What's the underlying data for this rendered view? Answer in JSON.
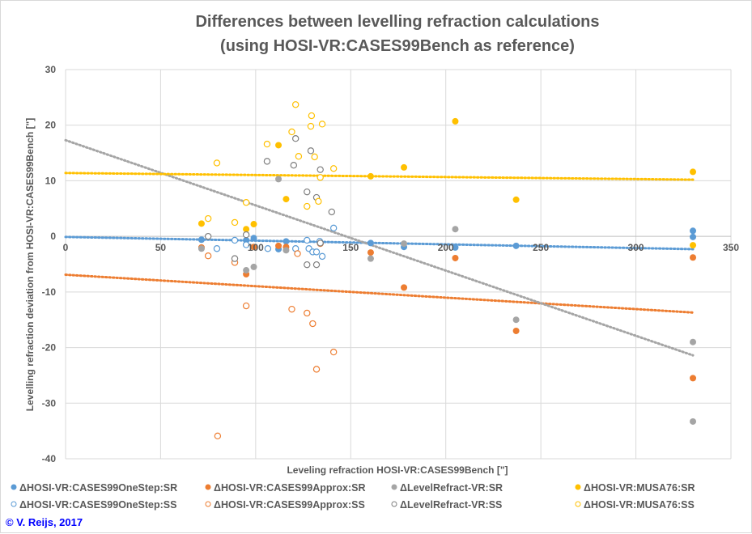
{
  "chart_data": {
    "type": "scatter",
    "title_lines": [
      "Differences between levelling refraction calculations",
      "(using HOSI-VR:CASES99Bench as reference)"
    ],
    "xlabel": "Leveling refraction HOSI-VR:CASES99Bench [\"]",
    "ylabel": "Levelling refraction deviation from HOSI-VR:CASES99Bench [\"]",
    "xlim": [
      0,
      350
    ],
    "ylim": [
      -40,
      30
    ],
    "xticks": [
      0,
      50,
      100,
      150,
      200,
      250,
      300,
      350
    ],
    "yticks": [
      30,
      20,
      10,
      0,
      -10,
      -20,
      -30,
      -40
    ],
    "grid": true,
    "legend_placement": "bottom",
    "copyright": "© V. Reijs, 2017",
    "series": [
      {
        "name": "ΔHOSI-VR:CASES99OneStep:SR",
        "color": "#5B9BD5",
        "filled": true,
        "points": [
          [
            71.5,
            -0.6
          ],
          [
            95,
            -0.7
          ],
          [
            99,
            -0.3
          ],
          [
            112,
            -2.3
          ],
          [
            116,
            -0.9
          ],
          [
            160.5,
            -1.2
          ],
          [
            178,
            -1.9
          ],
          [
            205,
            -2
          ],
          [
            237,
            -1.7
          ],
          [
            330,
            1.0
          ],
          [
            330,
            -0.1
          ]
        ],
        "trend": [
          [
            0,
            -0.1
          ],
          [
            330,
            -2.3
          ]
        ]
      },
      {
        "name": "ΔHOSI-VR:CASES99Approx:SR",
        "color": "#ED7D31",
        "filled": true,
        "points": [
          [
            71.5,
            -2
          ],
          [
            95,
            -6.8
          ],
          [
            99,
            -1.9
          ],
          [
            112,
            -1.7
          ],
          [
            116,
            -1.9
          ],
          [
            160.5,
            -2.9
          ],
          [
            178,
            -9.2
          ],
          [
            205,
            -3.9
          ],
          [
            237,
            -17
          ],
          [
            330,
            -25.5
          ],
          [
            330,
            -3.8
          ]
        ],
        "trend": [
          [
            0,
            -6.9
          ],
          [
            330,
            -13.7
          ]
        ]
      },
      {
        "name": "ΔLevelRefract-VR:SR",
        "color": "#A5A5A5",
        "filled": true,
        "points": [
          [
            71.5,
            -2.2
          ],
          [
            95,
            -6.1
          ],
          [
            99,
            -5.5
          ],
          [
            112,
            10.3
          ],
          [
            116,
            -2.5
          ],
          [
            160.5,
            -4
          ],
          [
            178,
            -1.3
          ],
          [
            205,
            1.3
          ],
          [
            237,
            -15
          ],
          [
            330,
            -19
          ],
          [
            330,
            -33.3
          ]
        ],
        "trend": [
          [
            0,
            17.3
          ],
          [
            330,
            -21.4
          ]
        ]
      },
      {
        "name": "ΔHOSI-VR:MUSA76:SR",
        "color": "#FFC000",
        "filled": true,
        "points": [
          [
            71.5,
            2.3
          ],
          [
            95,
            1.3
          ],
          [
            99,
            2.2
          ],
          [
            112,
            16.4
          ],
          [
            116,
            6.7
          ],
          [
            160.5,
            10.8
          ],
          [
            178,
            12.4
          ],
          [
            205,
            20.7
          ],
          [
            237,
            6.6
          ],
          [
            330,
            11.6
          ],
          [
            330,
            -1.6
          ]
        ],
        "trend": [
          [
            0,
            11.4
          ],
          [
            330,
            10.2
          ]
        ]
      },
      {
        "name": "ΔHOSI-VR:CASES99OneStep:SS",
        "color": "#5B9BD5",
        "filled": false,
        "points": [
          [
            79.6,
            -2.2
          ],
          [
            89,
            -0.7
          ],
          [
            95,
            -1.5
          ],
          [
            106.4,
            -2.2
          ],
          [
            121,
            -2.2
          ],
          [
            127,
            -0.7
          ],
          [
            128,
            -2.2
          ],
          [
            130,
            -2.8
          ],
          [
            132,
            -2.8
          ],
          [
            133.7,
            -0.9
          ],
          [
            135,
            -3.6
          ],
          [
            141,
            1.5
          ]
        ]
      },
      {
        "name": "ΔHOSI-VR:CASES99Approx:SS",
        "color": "#ED7D31",
        "filled": false,
        "points": [
          [
            75,
            -3.5
          ],
          [
            89,
            -4.7
          ],
          [
            95,
            -12.5
          ],
          [
            122,
            -3.1
          ],
          [
            119,
            -13.1
          ],
          [
            127,
            -13.8
          ],
          [
            130,
            -15.7
          ],
          [
            132,
            -23.9
          ],
          [
            134,
            -1.3
          ],
          [
            141,
            -20.8
          ],
          [
            80,
            -35.9
          ]
        ]
      },
      {
        "name": "ΔLevelRefract-VR:SS",
        "color": "#7F7F7F",
        "filled": false,
        "points": [
          [
            75,
            0
          ],
          [
            89,
            -4
          ],
          [
            95,
            0.3
          ],
          [
            106,
            13.5
          ],
          [
            120,
            12.8
          ],
          [
            121,
            17.6
          ],
          [
            127,
            8.0
          ],
          [
            129,
            15.4
          ],
          [
            132,
            7
          ],
          [
            134,
            12
          ],
          [
            140,
            4.4
          ],
          [
            127,
            -5.1
          ],
          [
            132,
            -5.1
          ],
          [
            134,
            -1.2
          ]
        ]
      },
      {
        "name": "ΔHOSI-VR:MUSA76:SS",
        "color": "#FFC000",
        "filled": false,
        "points": [
          [
            75,
            3.2
          ],
          [
            79.6,
            13.2
          ],
          [
            89,
            2.5
          ],
          [
            95,
            6.1
          ],
          [
            106,
            16.6
          ],
          [
            119,
            18.8
          ],
          [
            121,
            23.7
          ],
          [
            122.6,
            14.4
          ],
          [
            127,
            5.4
          ],
          [
            129,
            19.8
          ],
          [
            129.4,
            21.7
          ],
          [
            131,
            14.3
          ],
          [
            133,
            6.3
          ],
          [
            134,
            10.6
          ],
          [
            135,
            20.2
          ],
          [
            141,
            12.2
          ]
        ]
      }
    ]
  }
}
